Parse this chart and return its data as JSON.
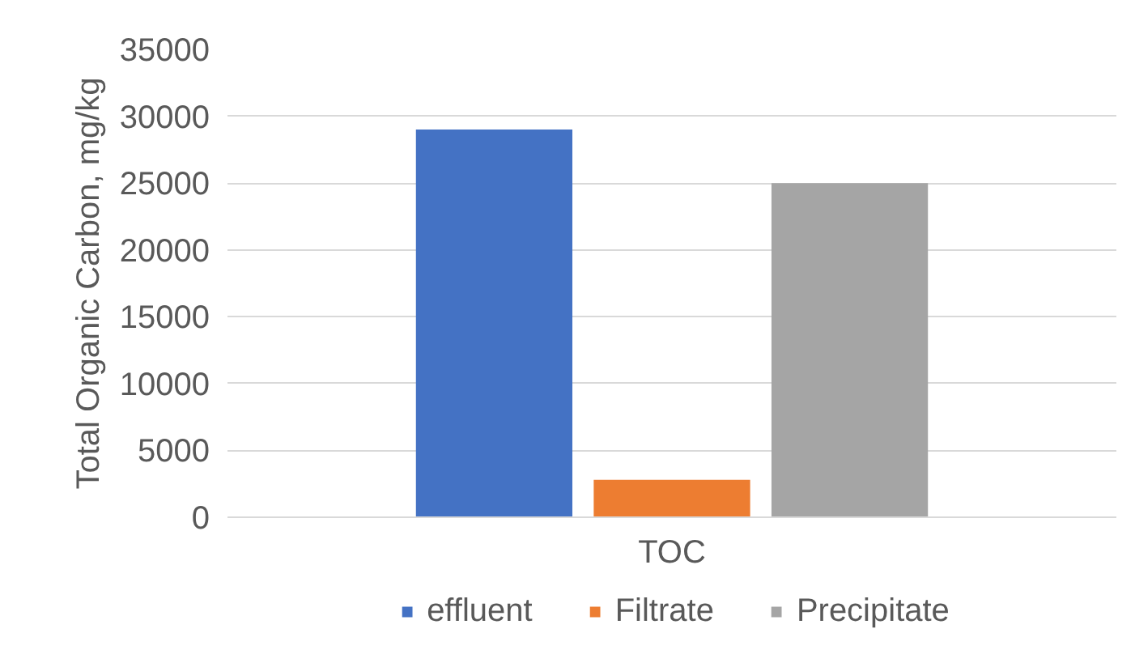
{
  "chart_data": {
    "type": "bar",
    "categories": [
      "TOC"
    ],
    "ylabel": "Total Organic Carbon, mg/kg",
    "series": [
      {
        "name": "effluent",
        "color": "#4472c4",
        "values": [
          29000
        ]
      },
      {
        "name": "Filtrate",
        "color": "#ed7d31",
        "values": [
          2800
        ]
      },
      {
        "name": "Precipitate",
        "color": "#a5a5a5",
        "values": [
          25000
        ]
      }
    ],
    "ylim": [
      0,
      35000
    ],
    "yticks": [
      0,
      5000,
      10000,
      15000,
      20000,
      25000,
      30000,
      35000
    ],
    "grid": "y",
    "legend": "bottom"
  }
}
